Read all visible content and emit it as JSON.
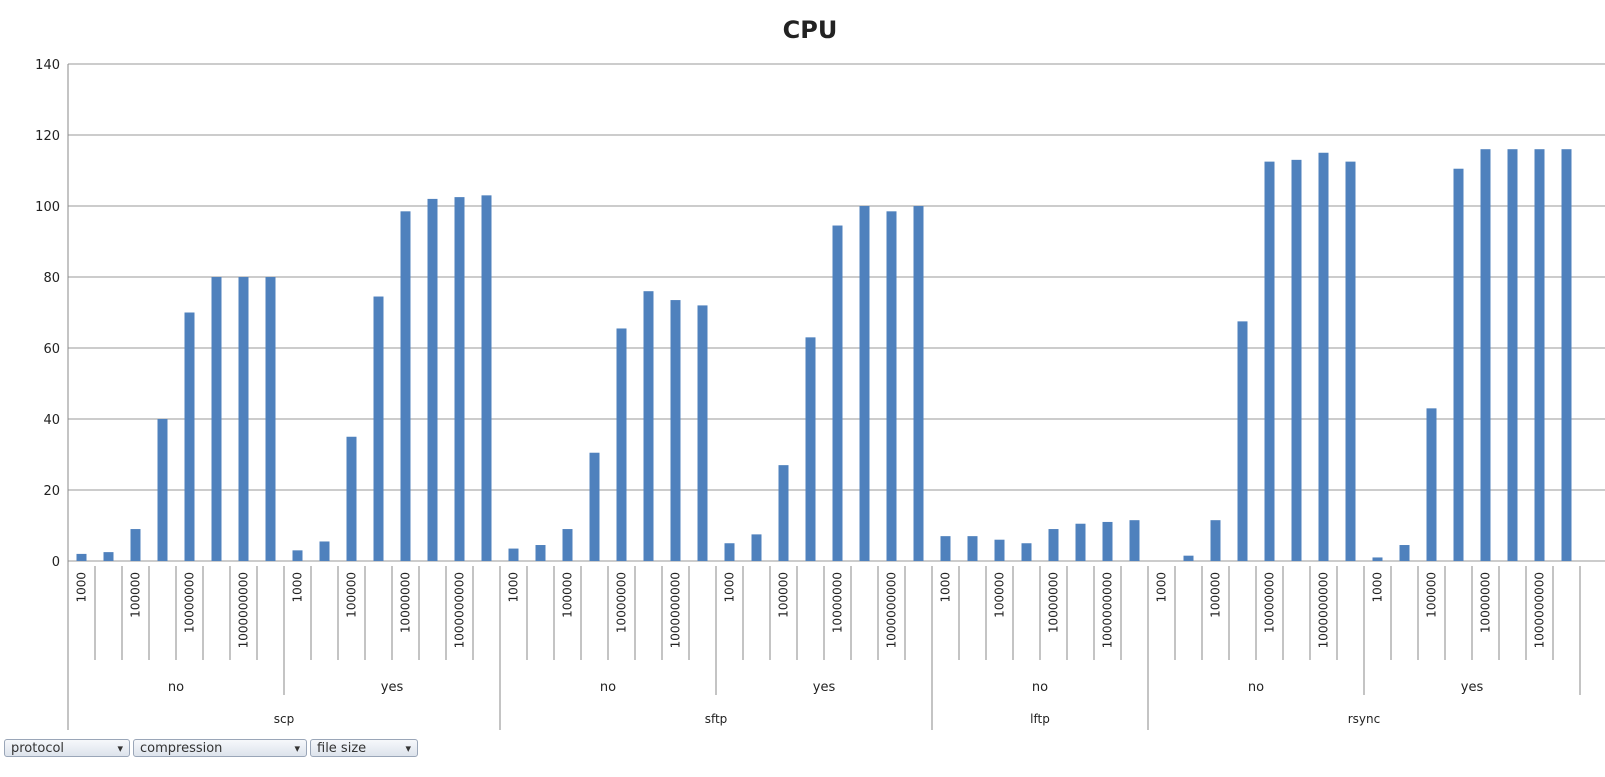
{
  "chart_data": {
    "type": "bar",
    "title": "CPU",
    "color": "#4f81bd",
    "grid": true,
    "ylim": [
      0,
      140
    ],
    "yticks": [
      0,
      20,
      40,
      60,
      80,
      100,
      120,
      140
    ],
    "groups": [
      {
        "name": "scp",
        "subgroups": [
          {
            "name": "no",
            "categories": [
              "1000",
              null,
              "100000",
              null,
              "10000000",
              null,
              "1000000000",
              null
            ],
            "values": [
              2,
              2.5,
              9,
              40,
              70,
              80,
              80,
              80
            ]
          },
          {
            "name": "yes",
            "categories": [
              "1000",
              null,
              "100000",
              null,
              "10000000",
              null,
              "1000000000",
              null
            ],
            "values": [
              3,
              5.5,
              35,
              74.5,
              98.5,
              102,
              102.5,
              103
            ]
          }
        ]
      },
      {
        "name": "sftp",
        "subgroups": [
          {
            "name": "no",
            "categories": [
              "1000",
              null,
              "100000",
              null,
              "10000000",
              null,
              "1000000000",
              null
            ],
            "values": [
              3.5,
              4.5,
              9,
              30.5,
              65.5,
              76,
              73.5,
              72
            ]
          },
          {
            "name": "yes",
            "categories": [
              "1000",
              null,
              "100000",
              null,
              "10000000",
              null,
              "1000000000",
              null
            ],
            "values": [
              5,
              7.5,
              27,
              63,
              94.5,
              100,
              98.5,
              100
            ]
          }
        ]
      },
      {
        "name": "lftp",
        "subgroups": [
          {
            "name": "no",
            "categories": [
              "1000",
              null,
              "100000",
              null,
              "10000000",
              null,
              "1000000000",
              null
            ],
            "values": [
              7,
              7,
              6,
              5,
              9,
              10.5,
              11,
              11.5
            ]
          }
        ]
      },
      {
        "name": "rsync",
        "subgroups": [
          {
            "name": "no",
            "categories": [
              "1000",
              null,
              "100000",
              null,
              "10000000",
              null,
              "1000000000",
              null
            ],
            "values": [
              null,
              1.5,
              11.5,
              67.5,
              112.5,
              113,
              115,
              112.5
            ]
          },
          {
            "name": "yes",
            "categories": [
              "1000",
              null,
              "100000",
              null,
              "10000000",
              null,
              "1000000000",
              null
            ],
            "values": [
              1,
              4.5,
              43,
              110.5,
              116,
              116,
              116,
              116
            ]
          }
        ]
      }
    ]
  },
  "field_buttons": [
    "protocol",
    "compression",
    "file size"
  ]
}
